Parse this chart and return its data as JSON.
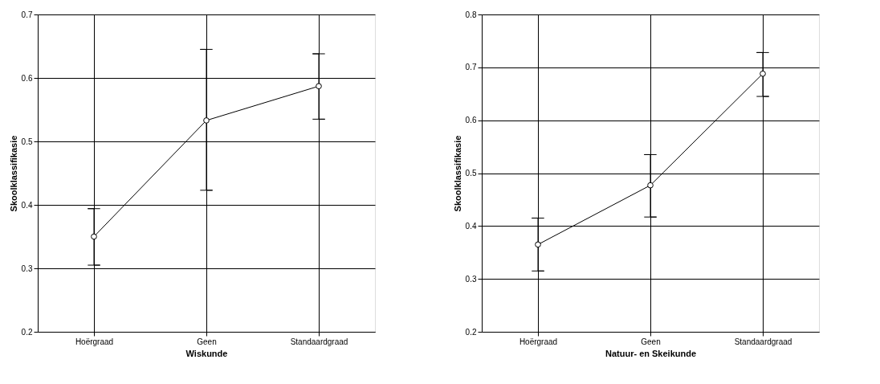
{
  "chart_data": [
    {
      "type": "line",
      "xlabel": "Wiskunde",
      "ylabel": "Skoolklassifikasie",
      "categories": [
        "Hoërgraad",
        "Geen",
        "Standaardgraad"
      ],
      "values": [
        0.35,
        0.533,
        0.587
      ],
      "color": "#000000",
      "errors": [
        [
          0.305,
          0.394
        ],
        [
          0.423,
          0.645
        ],
        [
          0.535,
          0.638
        ]
      ],
      "ylim": [
        0.2,
        0.7
      ],
      "yticks": [
        0.2,
        0.3,
        0.4,
        0.5,
        0.6,
        0.7
      ],
      "grid": true,
      "marker": "circle",
      "line_style": "solid"
    },
    {
      "type": "line",
      "xlabel": "Natuur- en Skeikunde",
      "ylabel": "Skoolklassifikasie",
      "categories": [
        "Hoërgraad",
        "Geen",
        "Standaardgraad"
      ],
      "values": [
        0.365,
        0.477,
        0.688
      ],
      "color": "#000000",
      "errors": [
        [
          0.315,
          0.415
        ],
        [
          0.417,
          0.535
        ],
        [
          0.645,
          0.728
        ]
      ],
      "ylim": [
        0.2,
        0.8
      ],
      "yticks": [
        0.2,
        0.3,
        0.4,
        0.5,
        0.6,
        0.7,
        0.8
      ],
      "grid": true,
      "marker": "circle",
      "line_style": "solid"
    }
  ]
}
